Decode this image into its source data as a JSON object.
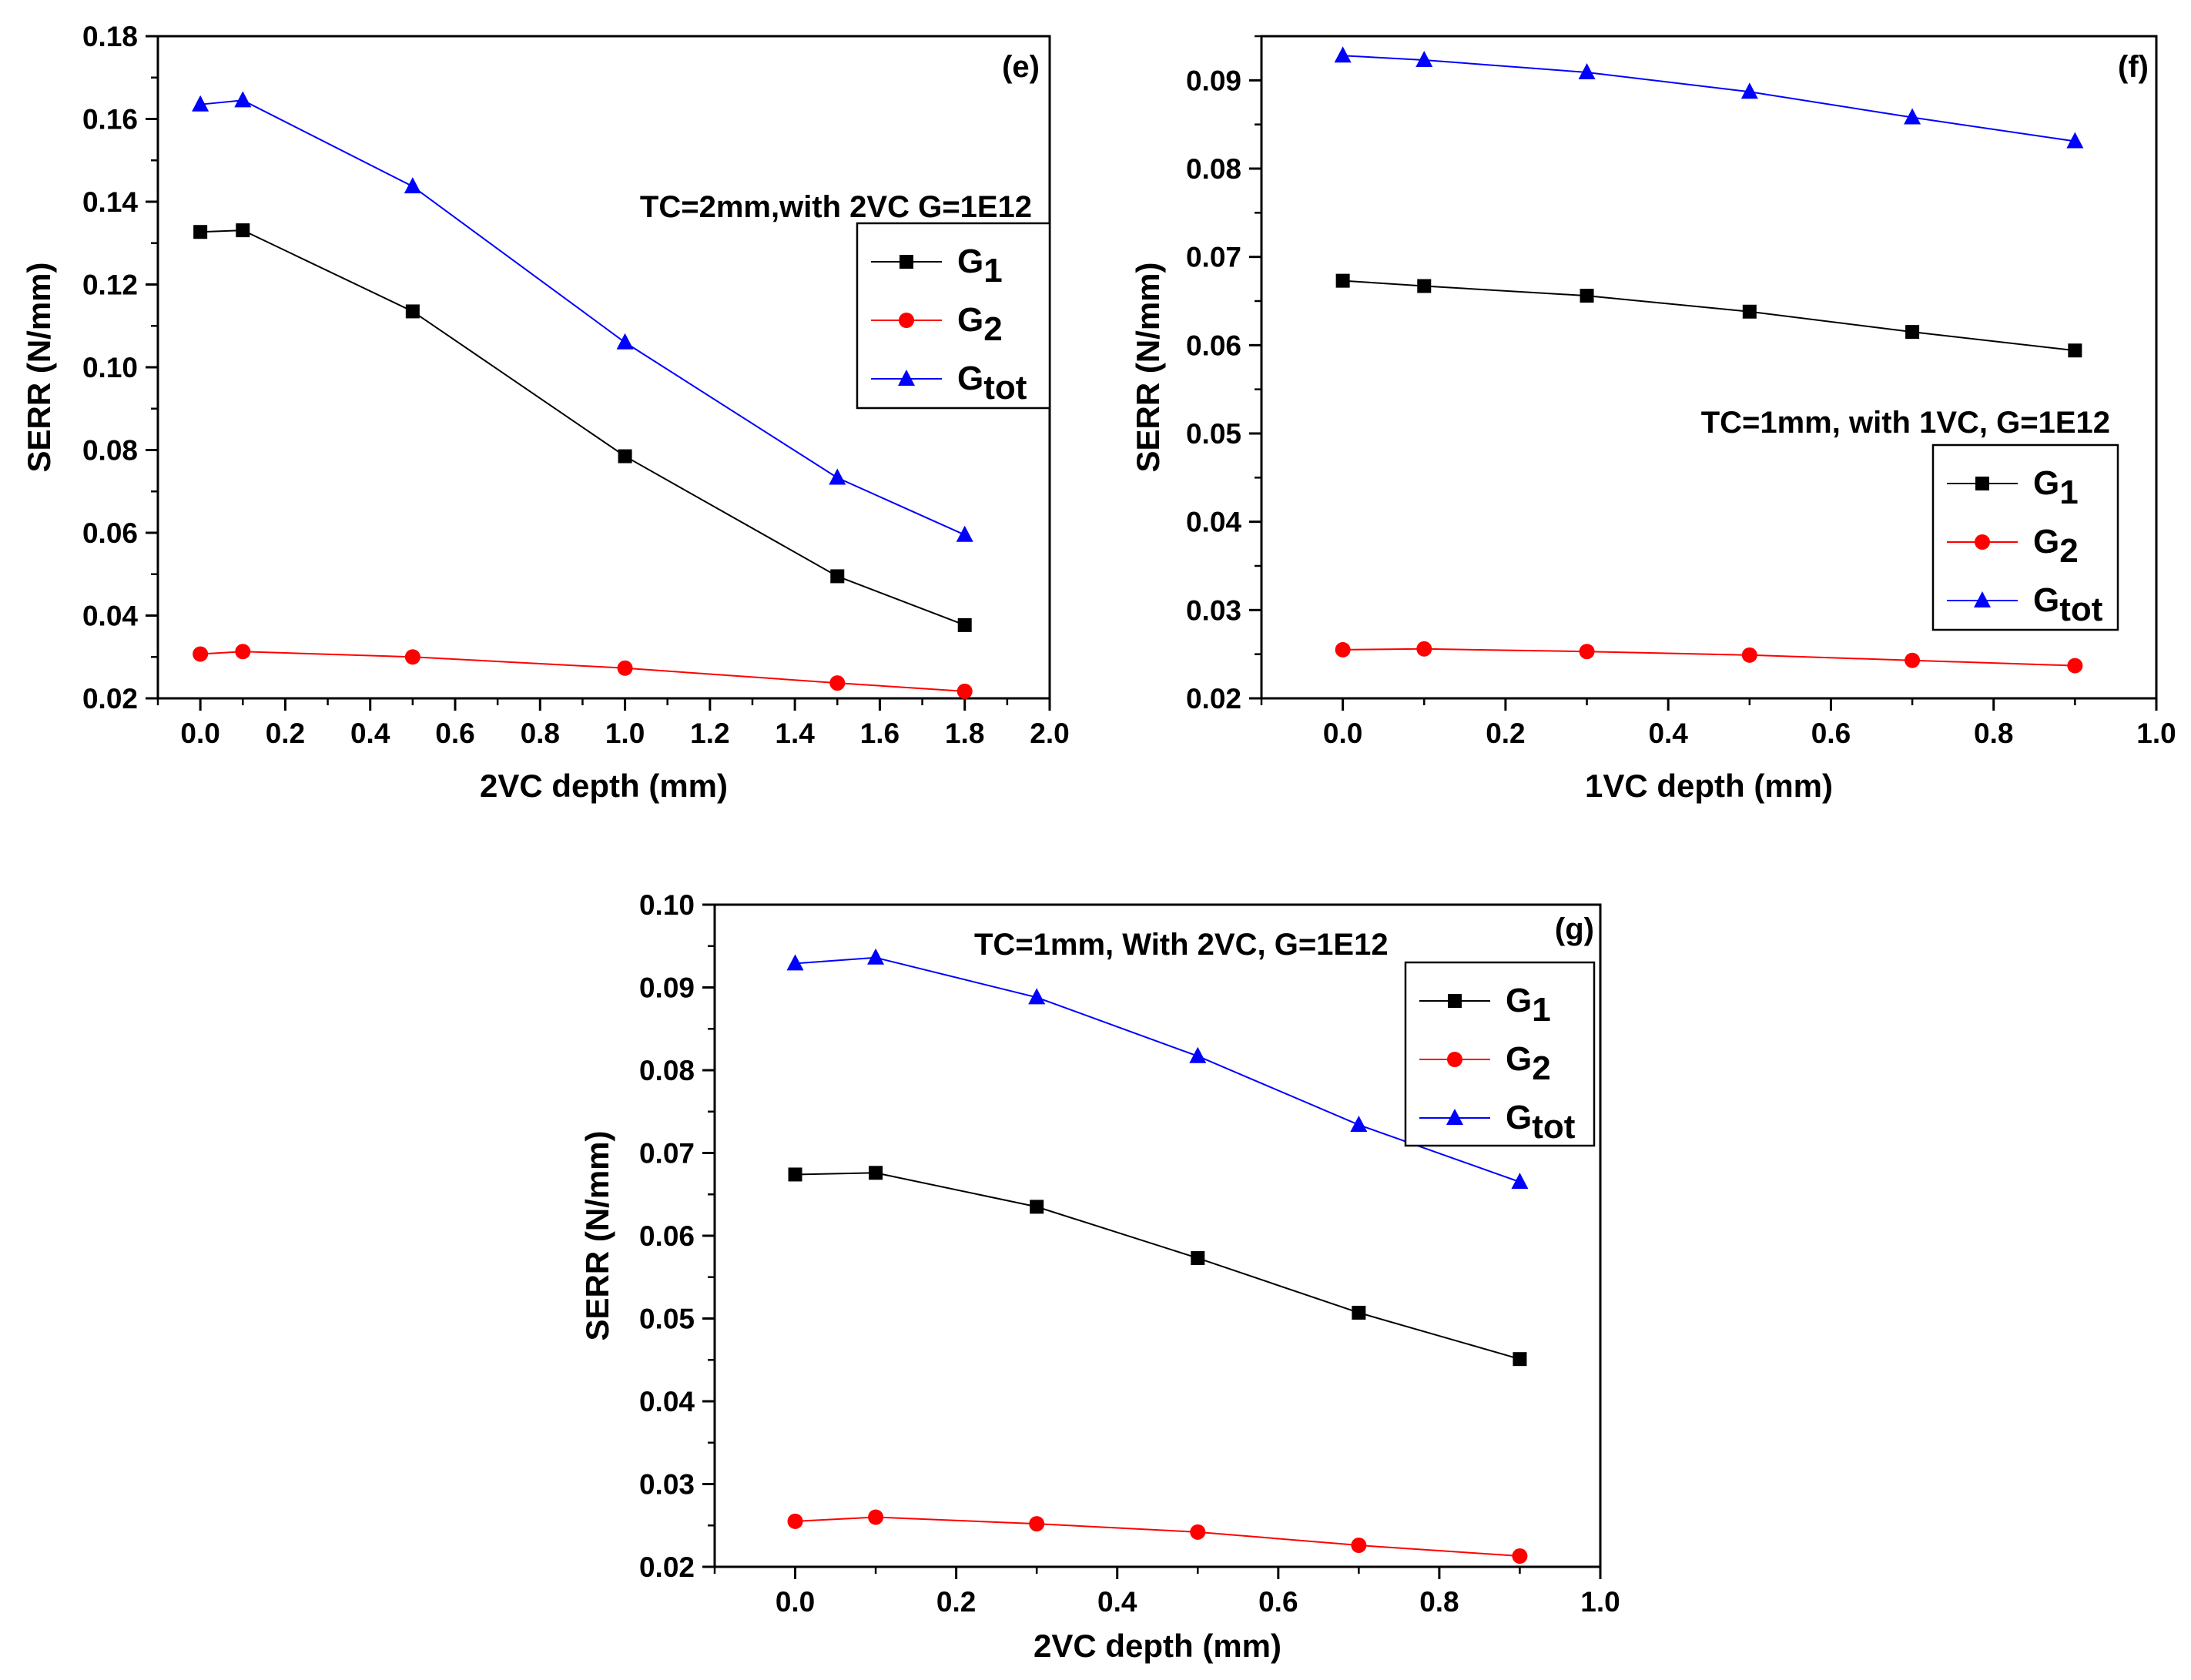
{
  "chart_data": [
    {
      "type": "line",
      "panel": "(e)",
      "annotation": "TC=2mm,with 2VC G=1E12",
      "xlabel": "2VC depth (mm)",
      "ylabel": "SERR (N/mm)",
      "xlim": [
        -0.1,
        2.0
      ],
      "ylim": [
        0.02,
        0.18
      ],
      "xticks": [
        "0.0",
        "0.2",
        "0.4",
        "0.6",
        "0.8",
        "1.0",
        "1.2",
        "1.4",
        "1.6",
        "1.8",
        "2.0"
      ],
      "yticks": [
        "0.02",
        "0.04",
        "0.06",
        "0.08",
        "0.10",
        "0.12",
        "0.14",
        "0.16",
        "0.18"
      ],
      "legend_position": "upper-right",
      "x": [
        0.0,
        0.1,
        0.5,
        1.0,
        1.5,
        1.8
      ],
      "series": [
        {
          "name": "G",
          "sub": "1",
          "color": "#000000",
          "marker": "square",
          "values": [
            0.1327,
            0.1331,
            0.1135,
            0.0785,
            0.0495,
            0.0377
          ]
        },
        {
          "name": "G",
          "sub": "2",
          "color": "#ff0000",
          "marker": "circle",
          "values": [
            0.0307,
            0.0313,
            0.03,
            0.0273,
            0.0237,
            0.0217
          ]
        },
        {
          "name": "G",
          "sub": "tot",
          "color": "#0000ff",
          "marker": "triangle",
          "values": [
            0.1635,
            0.1645,
            0.1437,
            0.106,
            0.0733,
            0.0595
          ]
        }
      ]
    },
    {
      "type": "line",
      "panel": "(f)",
      "annotation": "TC=1mm, with 1VC, G=1E12",
      "xlabel": "1VC depth (mm)",
      "ylabel": "SERR (N/mm)",
      "xlim": [
        -0.1,
        1.0
      ],
      "ylim": [
        0.02,
        0.095
      ],
      "xticks": [
        "0.0",
        "0.2",
        "0.4",
        "0.6",
        "0.8",
        "1.0"
      ],
      "yticks": [
        "0.02",
        "0.03",
        "0.04",
        "0.05",
        "0.06",
        "0.07",
        "0.08",
        "0.09"
      ],
      "legend_position": "center-right",
      "x": [
        0.0,
        0.1,
        0.3,
        0.5,
        0.7,
        0.9
      ],
      "series": [
        {
          "name": "G",
          "sub": "1",
          "color": "#000000",
          "marker": "square",
          "values": [
            0.0673,
            0.0667,
            0.0656,
            0.0638,
            0.0615,
            0.0594
          ]
        },
        {
          "name": "G",
          "sub": "2",
          "color": "#ff0000",
          "marker": "circle",
          "values": [
            0.0255,
            0.0256,
            0.0253,
            0.0249,
            0.0243,
            0.0237
          ]
        },
        {
          "name": "G",
          "sub": "tot",
          "color": "#0000ff",
          "marker": "triangle",
          "values": [
            0.0928,
            0.0923,
            0.0909,
            0.0887,
            0.0858,
            0.0831
          ]
        }
      ]
    },
    {
      "type": "line",
      "panel": "(g)",
      "annotation": "TC=1mm, With 2VC, G=1E12",
      "xlabel": "2VC depth (mm)",
      "ylabel": "SERR (N/mm)",
      "xlim": [
        -0.1,
        1.0
      ],
      "ylim": [
        0.02,
        0.1
      ],
      "xticks": [
        "0.0",
        "0.2",
        "0.4",
        "0.6",
        "0.8",
        "1.0"
      ],
      "yticks": [
        "0.02",
        "0.03",
        "0.04",
        "0.05",
        "0.06",
        "0.07",
        "0.08",
        "0.09",
        "0.10"
      ],
      "legend_position": "upper-right",
      "x": [
        0.0,
        0.1,
        0.3,
        0.5,
        0.7,
        0.9
      ],
      "series": [
        {
          "name": "G",
          "sub": "1",
          "color": "#000000",
          "marker": "square",
          "values": [
            0.0674,
            0.0676,
            0.0635,
            0.0573,
            0.0507,
            0.0451
          ]
        },
        {
          "name": "G",
          "sub": "2",
          "color": "#ff0000",
          "marker": "circle",
          "values": [
            0.0255,
            0.026,
            0.0252,
            0.0242,
            0.0226,
            0.0213
          ]
        },
        {
          "name": "G",
          "sub": "tot",
          "color": "#0000ff",
          "marker": "triangle",
          "values": [
            0.0929,
            0.0936,
            0.0888,
            0.0817,
            0.0734,
            0.0665
          ]
        }
      ]
    }
  ]
}
